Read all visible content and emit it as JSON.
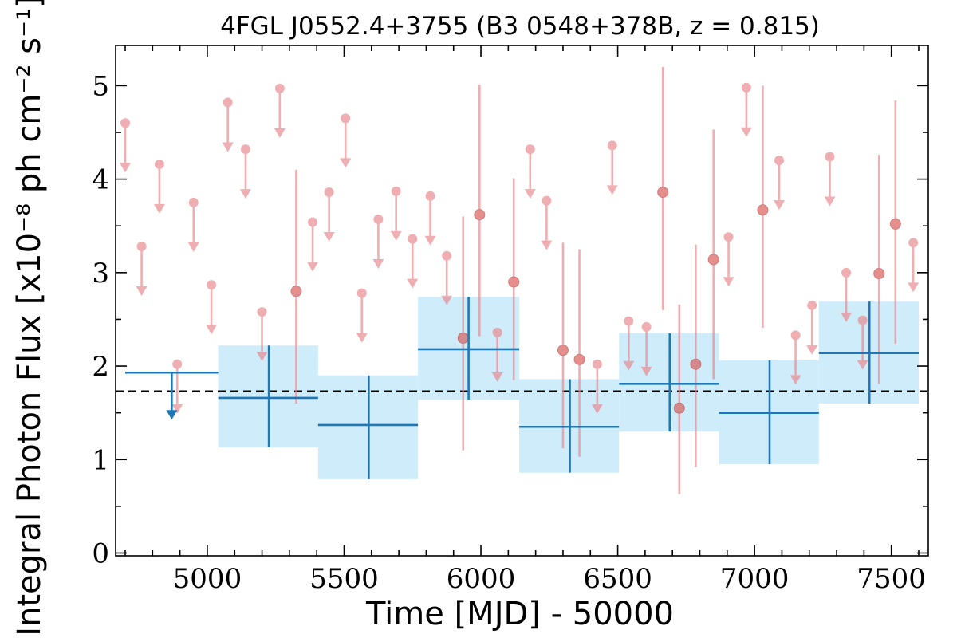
{
  "chart_data": {
    "type": "scatter",
    "title": "4FGL J0552.4+3755 (B3 0548+378B, z = 0.815)",
    "xlabel": "Time [MJD] - 50000",
    "ylabel": "Integral Photon Flux [x10⁻⁸ ph cm⁻² s⁻¹]",
    "xlim": [
      4665,
      7635
    ],
    "ylim": [
      -0.03,
      5.43
    ],
    "x_ticks": [
      5000,
      5500,
      6000,
      6500,
      7000,
      7500
    ],
    "y_ticks": [
      0,
      1,
      2,
      3,
      4,
      5
    ],
    "grid": false,
    "reference_line": {
      "style": "dashed",
      "color": "#000000",
      "y": 1.73
    },
    "series": [
      {
        "kind": "binned_long",
        "color": "#1f77b4",
        "band_color": "#cfecfb",
        "upper_limits": [
          {
            "x_start": 4700,
            "x_end": 5040,
            "x": 4870,
            "y": 1.93
          }
        ],
        "points": [
          {
            "x_start": 5040,
            "x_end": 5405,
            "x": 5225,
            "y": 1.66,
            "y_low": 1.13,
            "y_high": 2.22
          },
          {
            "x_start": 5405,
            "x_end": 5770,
            "x": 5590,
            "y": 1.37,
            "y_low": 0.79,
            "y_high": 1.9
          },
          {
            "x_start": 5770,
            "x_end": 6140,
            "x": 5955,
            "y": 2.18,
            "y_low": 1.64,
            "y_high": 2.74
          },
          {
            "x_start": 6140,
            "x_end": 6505,
            "x": 6325,
            "y": 1.35,
            "y_low": 0.86,
            "y_high": 1.86
          },
          {
            "x_start": 6505,
            "x_end": 6870,
            "x": 6690,
            "y": 1.81,
            "y_low": 1.3,
            "y_high": 2.35
          },
          {
            "x_start": 6870,
            "x_end": 7235,
            "x": 7055,
            "y": 1.5,
            "y_low": 0.95,
            "y_high": 2.06
          },
          {
            "x_start": 7235,
            "x_end": 7600,
            "x": 7420,
            "y": 2.14,
            "y_low": 1.6,
            "y_high": 2.69
          }
        ]
      },
      {
        "kind": "binned_short",
        "color": "#e8848a",
        "upper_limits": [
          {
            "x": 4700,
            "y": 4.6
          },
          {
            "x": 4760,
            "y": 3.28
          },
          {
            "x": 4825,
            "y": 4.16
          },
          {
            "x": 4890,
            "y": 2.02
          },
          {
            "x": 4950,
            "y": 3.75
          },
          {
            "x": 5015,
            "y": 2.87
          },
          {
            "x": 5075,
            "y": 4.82
          },
          {
            "x": 5140,
            "y": 4.32
          },
          {
            "x": 5200,
            "y": 2.58
          },
          {
            "x": 5265,
            "y": 4.97
          },
          {
            "x": 5385,
            "y": 3.54
          },
          {
            "x": 5445,
            "y": 3.86
          },
          {
            "x": 5505,
            "y": 4.65
          },
          {
            "x": 5565,
            "y": 2.78
          },
          {
            "x": 5625,
            "y": 3.57
          },
          {
            "x": 5690,
            "y": 3.87
          },
          {
            "x": 5750,
            "y": 3.36
          },
          {
            "x": 5815,
            "y": 3.82
          },
          {
            "x": 5875,
            "y": 3.18
          },
          {
            "x": 6060,
            "y": 2.36
          },
          {
            "x": 6180,
            "y": 4.32
          },
          {
            "x": 6240,
            "y": 3.77
          },
          {
            "x": 6425,
            "y": 2.02
          },
          {
            "x": 6480,
            "y": 4.36
          },
          {
            "x": 6540,
            "y": 2.48
          },
          {
            "x": 6605,
            "y": 2.42
          },
          {
            "x": 6905,
            "y": 3.38
          },
          {
            "x": 6970,
            "y": 4.98
          },
          {
            "x": 7090,
            "y": 4.2
          },
          {
            "x": 7150,
            "y": 2.33
          },
          {
            "x": 7210,
            "y": 2.65
          },
          {
            "x": 7275,
            "y": 4.24
          },
          {
            "x": 7335,
            "y": 3.0
          },
          {
            "x": 7395,
            "y": 2.49
          },
          {
            "x": 7580,
            "y": 3.32
          }
        ],
        "points": [
          {
            "x": 5325,
            "y": 2.8,
            "y_low": 1.6,
            "y_high": 4.1
          },
          {
            "x": 5935,
            "y": 2.3,
            "y_low": 1.1,
            "y_high": 3.6
          },
          {
            "x": 5995,
            "y": 3.62,
            "y_low": 2.32,
            "y_high": 5.01
          },
          {
            "x": 6120,
            "y": 2.9,
            "y_low": 1.85,
            "y_high": 4.01
          },
          {
            "x": 6300,
            "y": 2.17,
            "y_low": 1.12,
            "y_high": 3.32
          },
          {
            "x": 6360,
            "y": 2.07,
            "y_low": 1.03,
            "y_high": 3.25
          },
          {
            "x": 6665,
            "y": 3.86,
            "y_low": 2.6,
            "y_high": 5.2
          },
          {
            "x": 6725,
            "y": 1.55,
            "y_low": 0.63,
            "y_high": 2.66
          },
          {
            "x": 6785,
            "y": 2.02,
            "y_low": 0.92,
            "y_high": 3.3
          },
          {
            "x": 6850,
            "y": 3.14,
            "y_low": 1.86,
            "y_high": 4.53
          },
          {
            "x": 7030,
            "y": 3.67,
            "y_low": 2.41,
            "y_high": 5.0
          },
          {
            "x": 7455,
            "y": 2.99,
            "y_low": 1.81,
            "y_high": 4.26
          },
          {
            "x": 7515,
            "y": 3.52,
            "y_low": 2.24,
            "y_high": 4.84
          }
        ]
      }
    ]
  }
}
